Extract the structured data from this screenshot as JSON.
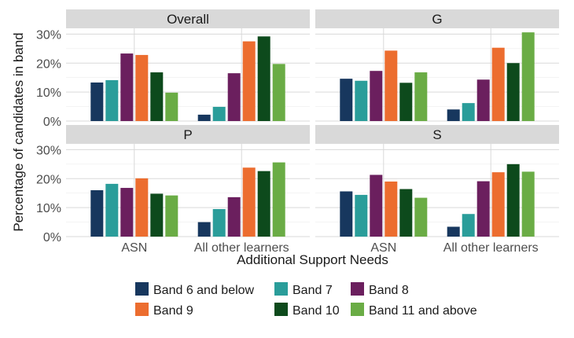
{
  "chart_data": {
    "type": "bar",
    "facet_layout": "2x2",
    "xlabel": "Additional Support Needs",
    "ylabel": "Percentage of candidates in band",
    "categories": [
      "ASN",
      "All other learners"
    ],
    "y_ticks": [
      "0%",
      "10%",
      "20%",
      "30%"
    ],
    "ylim": [
      0,
      32
    ],
    "grid": true,
    "legend_position": "bottom",
    "series": [
      {
        "name": "Band 6 and below",
        "color": "#17375e"
      },
      {
        "name": "Band 7",
        "color": "#2a9d9a"
      },
      {
        "name": "Band 8",
        "color": "#6b1f5e"
      },
      {
        "name": "Band 9",
        "color": "#ec6d2f"
      },
      {
        "name": "Band 10",
        "color": "#0d4a1c"
      },
      {
        "name": "Band 11 and above",
        "color": "#6aac45"
      }
    ],
    "panels": [
      {
        "title": "Overall",
        "values": [
          [
            13.3,
            14.1,
            23.3,
            22.8,
            16.8,
            9.8
          ],
          [
            2.2,
            4.9,
            16.5,
            27.5,
            29.2,
            19.7
          ]
        ]
      },
      {
        "title": "G",
        "values": [
          [
            14.6,
            13.9,
            17.3,
            24.3,
            13.2,
            16.8
          ],
          [
            4.0,
            6.2,
            14.3,
            25.3,
            20.0,
            30.6
          ]
        ]
      },
      {
        "title": "P",
        "values": [
          [
            16.0,
            18.2,
            16.8,
            20.1,
            14.8,
            14.2
          ],
          [
            5.0,
            9.5,
            13.6,
            23.8,
            22.6,
            25.6
          ]
        ]
      },
      {
        "title": "S",
        "values": [
          [
            15.6,
            14.4,
            21.3,
            19.0,
            16.4,
            13.4
          ],
          [
            3.4,
            7.8,
            19.1,
            22.2,
            25.0,
            22.4
          ]
        ]
      }
    ]
  }
}
